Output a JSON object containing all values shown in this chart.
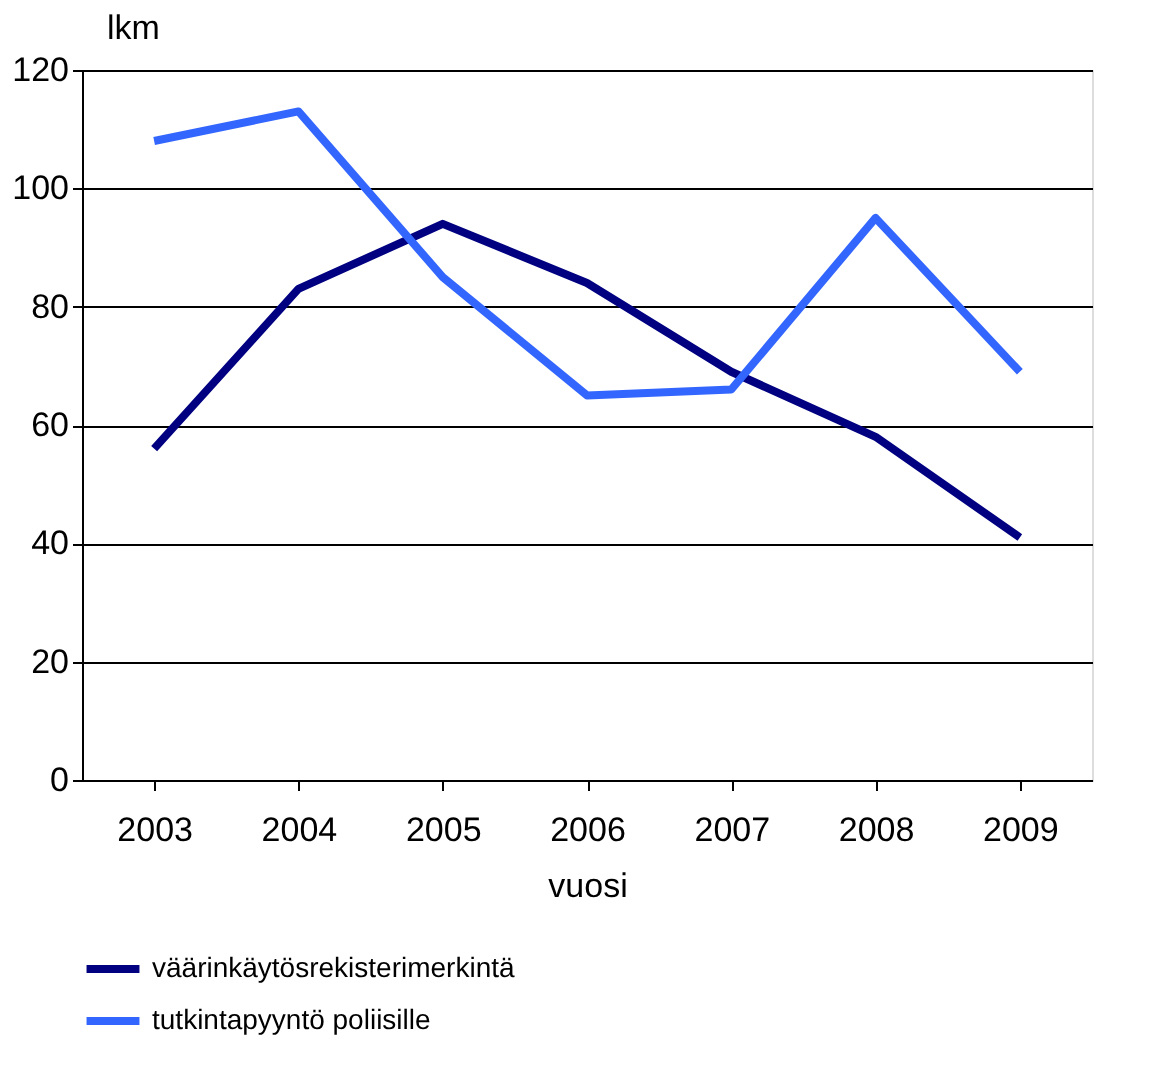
{
  "chart_data": {
    "type": "line",
    "xlabel": "vuosi",
    "ylabel": "lkm",
    "categories": [
      "2003",
      "2004",
      "2005",
      "2006",
      "2007",
      "2008",
      "2009"
    ],
    "series": [
      {
        "name": "väärinkäytösrekisterimerkintä",
        "color": "#000080",
        "values": [
          56,
          83,
          94,
          84,
          69,
          58,
          41
        ]
      },
      {
        "name": "tutkintapyyntö poliisille",
        "color": "#3366ff",
        "values": [
          108,
          113,
          85,
          65,
          66,
          95,
          69
        ]
      }
    ],
    "ylim": [
      0,
      120
    ],
    "yticks": [
      0,
      20,
      40,
      60,
      80,
      100,
      120
    ],
    "grid": "y",
    "legend": "bottom",
    "marker": "none",
    "line_style": "solid"
  }
}
